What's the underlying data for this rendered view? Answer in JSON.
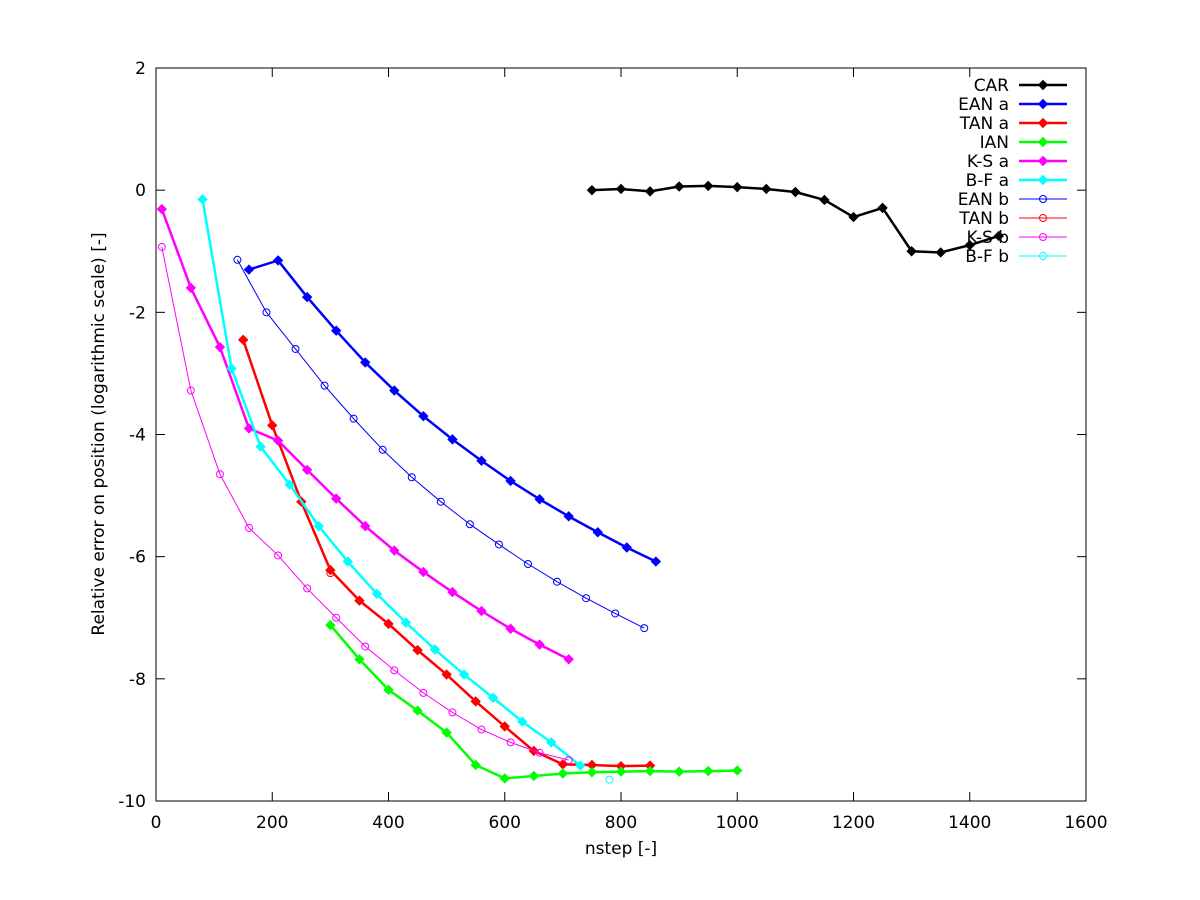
{
  "chart_data": {
    "type": "line",
    "title": "",
    "xlabel": "nstep [-]",
    "ylabel": "Relative error on position (logarithmic scale) [-]",
    "xlim": [
      0,
      1600
    ],
    "ylim": [
      -10,
      2
    ],
    "x_ticks": [
      "0",
      "200",
      "400",
      "600",
      "800",
      "1000",
      "1200",
      "1400",
      "1600"
    ],
    "y_ticks": [
      "-10",
      "-8",
      "-6",
      "-4",
      "-2",
      "0",
      "2"
    ],
    "grid": false,
    "legend_position": "top-right",
    "series": [
      {
        "name": "CAR",
        "color": "#000000",
        "marker": "filled-diamond",
        "line": "thick",
        "x": [
          750,
          800,
          850,
          900,
          950,
          1000,
          1050,
          1100,
          1150,
          1200,
          1250,
          1300,
          1350,
          1400,
          1450
        ],
        "y": [
          0.0,
          0.02,
          -0.02,
          0.06,
          0.07,
          0.05,
          0.02,
          -0.03,
          -0.16,
          -0.44,
          -0.29,
          -1.0,
          -1.02,
          -0.9,
          -0.75
        ]
      },
      {
        "name": "EAN a",
        "color": "#0000ff",
        "marker": "filled-diamond",
        "line": "thick",
        "x": [
          160,
          210,
          260,
          310,
          360,
          410,
          460,
          510,
          560,
          610,
          660,
          710,
          760,
          810,
          860
        ],
        "y": [
          -1.3,
          -1.15,
          -1.75,
          -2.3,
          -2.82,
          -3.28,
          -3.7,
          -4.08,
          -4.43,
          -4.76,
          -5.06,
          -5.34,
          -5.6,
          -5.85,
          -6.08
        ]
      },
      {
        "name": "TAN a",
        "color": "#ff0000",
        "marker": "filled-diamond",
        "line": "thick",
        "x": [
          150,
          200,
          250,
          300,
          350,
          400,
          450,
          500,
          550,
          600,
          650,
          700,
          750,
          800,
          850
        ],
        "y": [
          -2.45,
          -3.85,
          -5.1,
          -6.22,
          -6.72,
          -7.1,
          -7.53,
          -7.93,
          -8.37,
          -8.78,
          -9.18,
          -9.4,
          -9.41,
          -9.43,
          -9.42
        ]
      },
      {
        "name": "IAN",
        "color": "#00ff00",
        "marker": "filled-diamond",
        "line": "thick",
        "x": [
          300,
          350,
          400,
          450,
          500,
          550,
          600,
          650,
          700,
          750,
          800,
          850,
          900,
          950,
          1000
        ],
        "y": [
          -7.12,
          -7.68,
          -8.18,
          -8.52,
          -8.88,
          -9.41,
          -9.63,
          -9.59,
          -9.55,
          -9.53,
          -9.52,
          -9.51,
          -9.52,
          -9.51,
          -9.5
        ]
      },
      {
        "name": "K-S a",
        "color": "#ff00ff",
        "marker": "filled-diamond",
        "line": "thick",
        "x": [
          10,
          60,
          110,
          160,
          210,
          260,
          310,
          360,
          410,
          460,
          510,
          560,
          610,
          660,
          710
        ],
        "y": [
          -0.31,
          -1.6,
          -2.57,
          -3.9,
          -4.1,
          -4.58,
          -5.05,
          -5.5,
          -5.9,
          -6.25,
          -6.58,
          -6.89,
          -7.18,
          -7.44,
          -7.68
        ]
      },
      {
        "name": "B-F a",
        "color": "#00ffff",
        "marker": "filled-diamond",
        "line": "thick",
        "x": [
          80,
          130,
          180,
          230,
          280,
          330,
          380,
          430,
          480,
          530,
          580,
          630,
          680,
          730
        ],
        "y": [
          -0.15,
          -2.92,
          -4.2,
          -4.82,
          -5.5,
          -6.08,
          -6.61,
          -7.08,
          -7.52,
          -7.93,
          -8.31,
          -8.7,
          -9.04,
          -9.42
        ]
      },
      {
        "name": "EAN b",
        "color": "#0000ff",
        "marker": "open-circle",
        "line": "thin",
        "x": [
          140,
          190,
          240,
          290,
          340,
          390,
          440,
          490,
          540,
          590,
          640,
          690,
          740,
          790,
          840
        ],
        "y": [
          -1.14,
          -2.0,
          -2.6,
          -3.2,
          -3.74,
          -4.25,
          -4.7,
          -5.1,
          -5.47,
          -5.8,
          -6.12,
          -6.41,
          -6.68,
          -6.93,
          -7.17
        ]
      },
      {
        "name": "TAN b",
        "color": "#ff0000",
        "marker": "open-circle",
        "line": "thin",
        "x": [
          300
        ],
        "y": [
          -6.27
        ]
      },
      {
        "name": "K-S b",
        "color": "#ff00ff",
        "marker": "open-circle",
        "line": "thin",
        "x": [
          10,
          60,
          110,
          160,
          210,
          260,
          310,
          360,
          410,
          460,
          510,
          560,
          610,
          660,
          710
        ],
        "y": [
          -0.93,
          -3.28,
          -4.65,
          -5.53,
          -5.98,
          -6.52,
          -7.0,
          -7.47,
          -7.86,
          -8.23,
          -8.55,
          -8.83,
          -9.04,
          -9.21,
          -9.33
        ]
      },
      {
        "name": "B-F b",
        "color": "#00ffff",
        "marker": "open-circle",
        "line": "thin",
        "x": [
          780
        ],
        "y": [
          -9.65
        ]
      }
    ]
  }
}
